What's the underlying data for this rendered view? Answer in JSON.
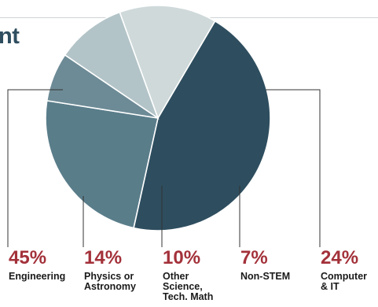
{
  "header": {
    "title_fragment": "nt"
  },
  "colors": {
    "engineering": "#2e4e5f",
    "computer_it": "#5a7d8a",
    "non_stem": "#6d8b96",
    "other_science": "#b3c4c8",
    "physics": "#cfd9da",
    "percent_text": "#a3313a",
    "leader_line": "#333333"
  },
  "chart_data": {
    "type": "pie",
    "title": "",
    "slices": [
      {
        "key": "engineering",
        "label_lines": [
          "Engineering"
        ],
        "percent_label": "45%",
        "value": 45
      },
      {
        "key": "computer_it",
        "label_lines": [
          "Computer",
          "& IT"
        ],
        "percent_label": "24%",
        "value": 24
      },
      {
        "key": "non_stem",
        "label_lines": [
          "Non-STEM"
        ],
        "percent_label": "7%",
        "value": 7
      },
      {
        "key": "other_science",
        "label_lines": [
          "Other",
          "Science,",
          "Tech. Math"
        ],
        "percent_label": "10%",
        "value": 10
      },
      {
        "key": "physics",
        "label_lines": [
          "Physics or",
          "Astronomy"
        ],
        "percent_label": "14%",
        "value": 14
      }
    ]
  }
}
